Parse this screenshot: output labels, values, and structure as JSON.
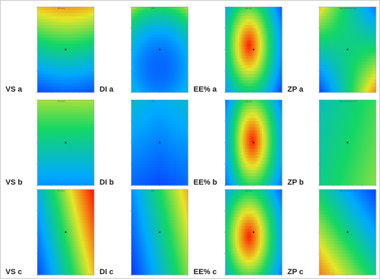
{
  "figure": {
    "panels": [
      {
        "id": "vs-a",
        "label": "VS a",
        "title": "VS (nm)",
        "map": "vsA"
      },
      {
        "id": "di-a",
        "label": "DI a",
        "title": "PDI",
        "map": "diA"
      },
      {
        "id": "ee-a",
        "label": "EE% a",
        "title": "EE (%)",
        "map": "eeA"
      },
      {
        "id": "zp-a",
        "label": "ZP a",
        "title": "Zeta potential (mV)",
        "map": "zpA"
      },
      {
        "id": "vs-b",
        "label": "VS b",
        "title": "VS (nm)",
        "map": "vsB"
      },
      {
        "id": "di-b",
        "label": "DI b",
        "title": "PDI",
        "map": "diB"
      },
      {
        "id": "ee-b",
        "label": "EE% b",
        "title": "EE (%)",
        "map": "eeB"
      },
      {
        "id": "zp-b",
        "label": "ZP b",
        "title": "Zeta potential (mV)",
        "map": "zpB"
      },
      {
        "id": "vs-c",
        "label": "VS c",
        "title": "VS (nm)",
        "map": "vsC"
      },
      {
        "id": "di-c",
        "label": "DI c",
        "title": "PDI",
        "map": "diC"
      },
      {
        "id": "ee-c",
        "label": "EE% c",
        "title": "EE (%)",
        "map": "eeC"
      },
      {
        "id": "zp-c",
        "label": "ZP c",
        "title": "Zeta potential (mV)",
        "map": "zpC"
      }
    ]
  },
  "colors": {
    "low": "#0a3cff",
    "mid": "#19d96a",
    "high": "#ff2200",
    "label": "#1a1a1a"
  }
}
